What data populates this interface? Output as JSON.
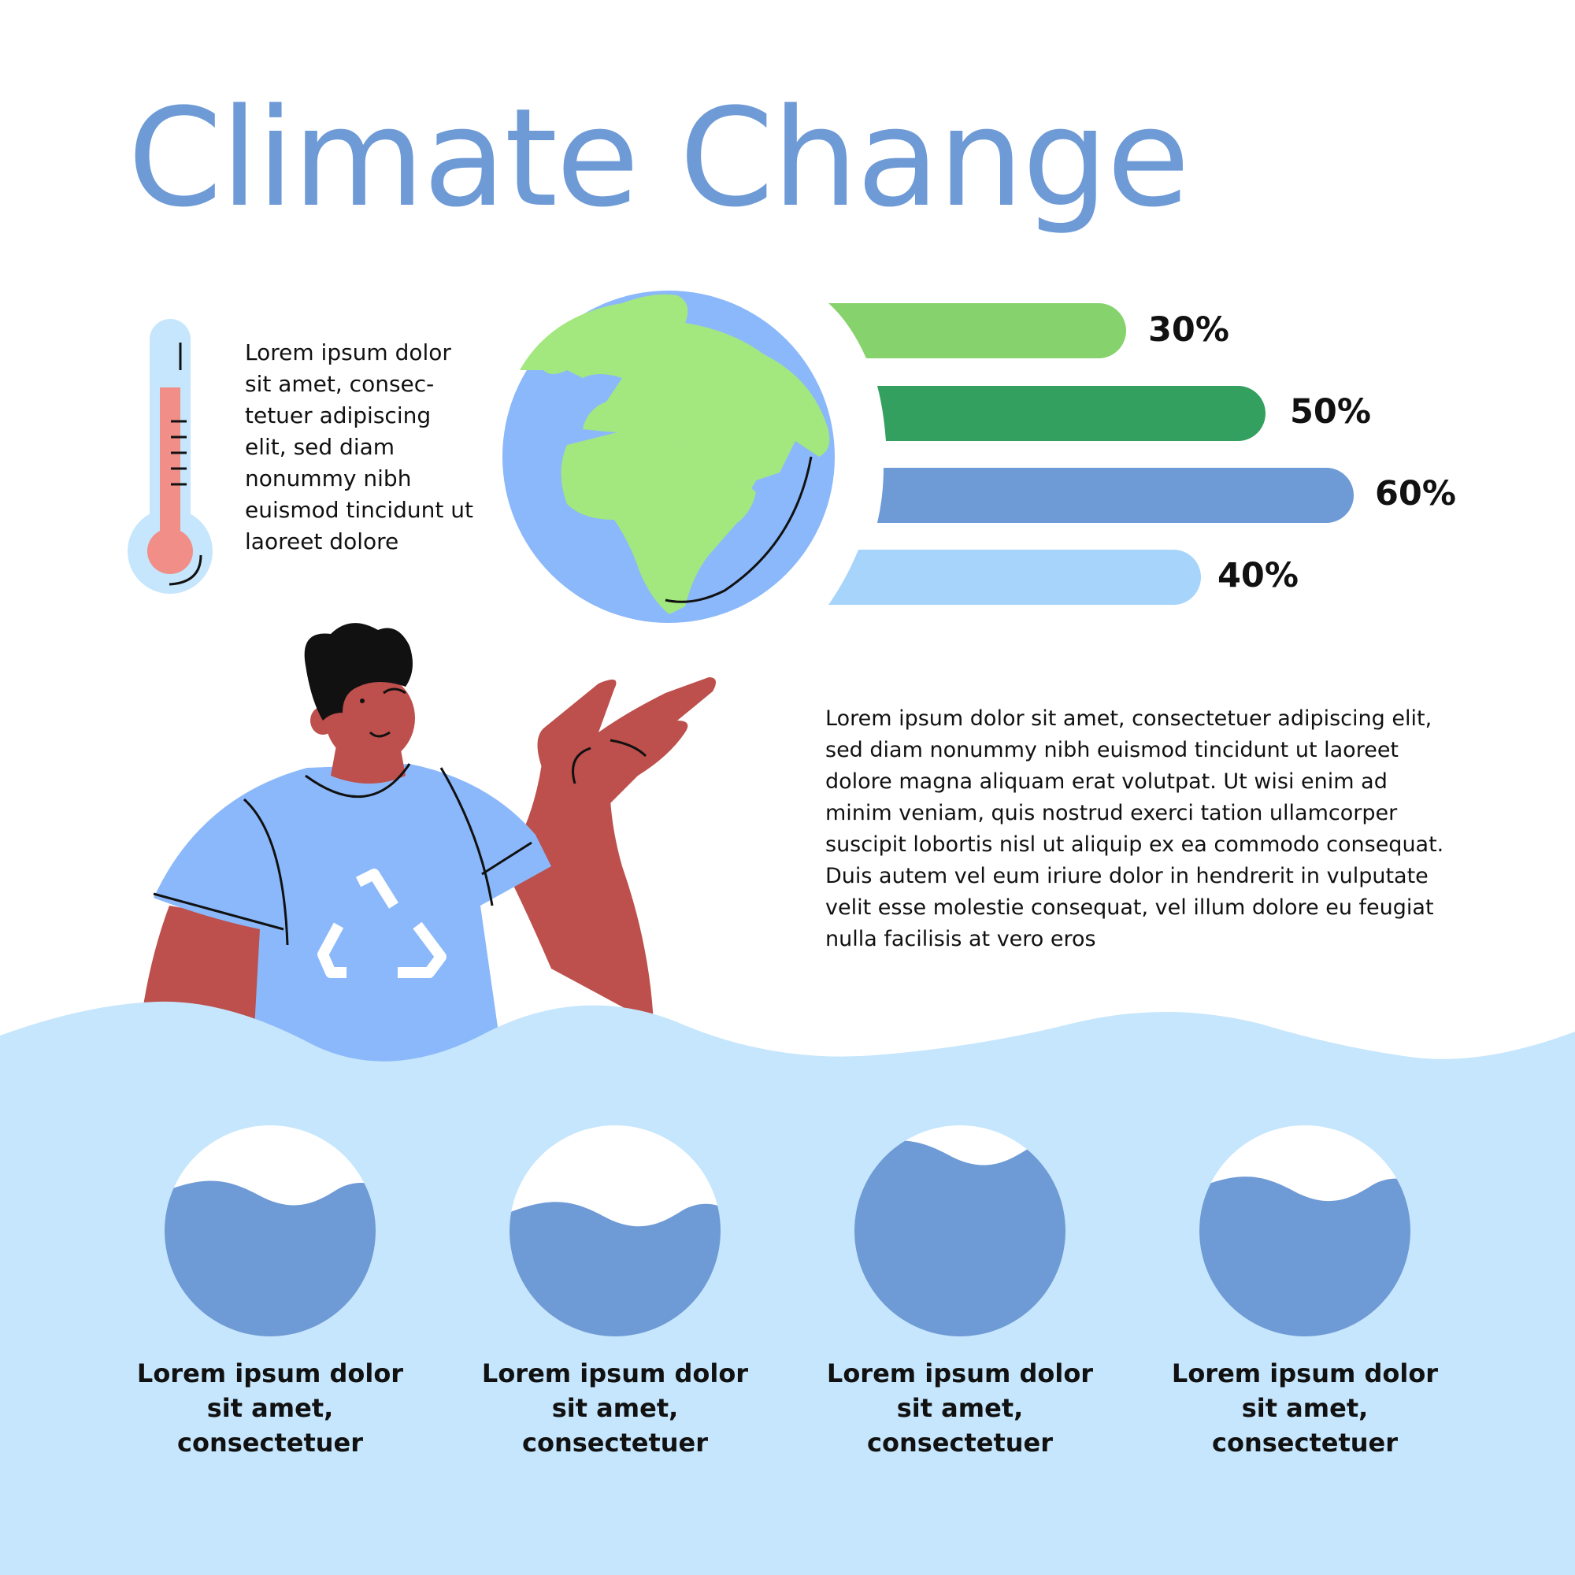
{
  "title": "Climate Change",
  "thermometer_text": "Lorem ipsum dolor sit amet, consec-tetuer adipiscing elit, sed diam nonummy nibh euismod tincidunt ut laoreet dolore",
  "main_text": "Lorem ipsum dolor sit amet, consectetuer adipiscing elit, sed diam nonummy nibh euismod tincidunt ut laoreet dolore magna aliquam erat volutpat. Ut wisi enim ad minim veniam, quis nostrud exerci tation ullamcorper suscipit lobortis nisl ut aliquip ex ea commodo consequat. Duis autem vel eum iriure dolor in hendrerit in vulputate velit esse molestie consequat, vel illum dolore eu feugiat nulla facilisis at vero eros",
  "colors": {
    "title": "#6e9ad6",
    "light_green": "#86d26c",
    "green": "#33a060",
    "mid_blue": "#6e9ad6",
    "light_blue": "#a6d4fb",
    "water_bg": "#c5e6fc",
    "globe_ocean": "#8bb8fa",
    "globe_land": "#a3e87f",
    "skin": "#bd4f4c",
    "shirt": "#8bb8fa"
  },
  "icons": [
    "thermometer-icon",
    "globe-icon",
    "person-illustration",
    "recycle-icon"
  ],
  "chart_data": [
    {
      "type": "bar",
      "orientation": "horizontal",
      "values": [
        30,
        50,
        60,
        40
      ],
      "labels": [
        "30%",
        "50%",
        "60%",
        "40%"
      ],
      "colors": [
        "#86d26c",
        "#33a060",
        "#6e9ad6",
        "#a6d4fb"
      ]
    },
    {
      "type": "gauge",
      "shape": "circle-fill",
      "items": [
        {
          "caption": "Lorem ipsum dolor sit amet, consectetuer",
          "fill": 0.68
        },
        {
          "caption": "Lorem ipsum dolor sit amet, consectetuer",
          "fill": 0.58
        },
        {
          "caption": "Lorem ipsum dolor sit amet, consectetuer",
          "fill": 0.87
        },
        {
          "caption": "Lorem ipsum dolor sit amet, consectetuer",
          "fill": 0.7
        }
      ]
    }
  ]
}
